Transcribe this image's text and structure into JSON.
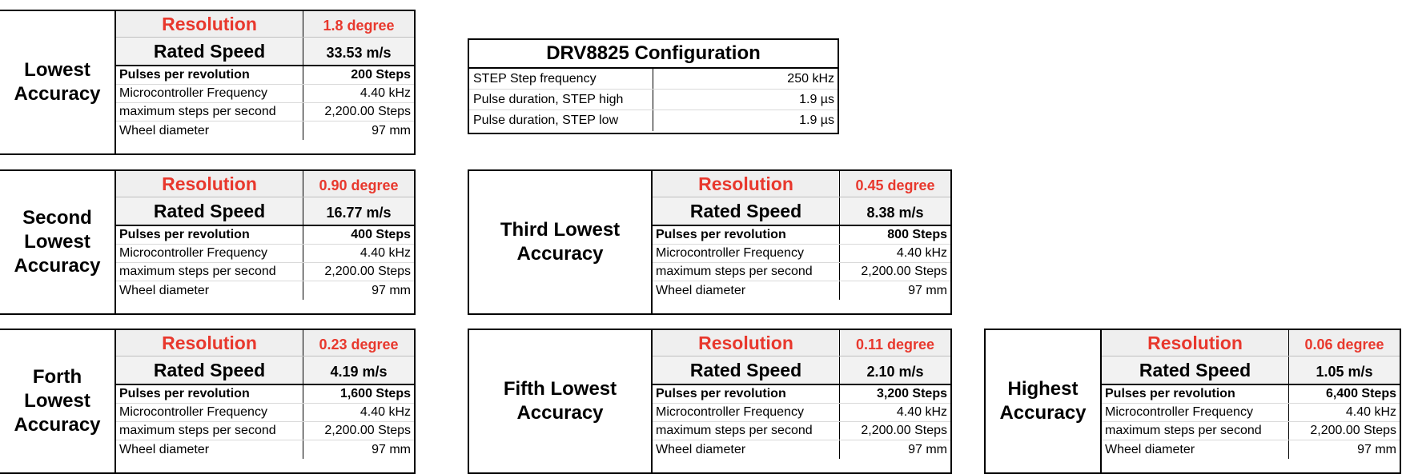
{
  "config": {
    "title": "DRV8825 Configuration",
    "rows": [
      {
        "label": "STEP Step frequency",
        "value": "250 kHz"
      },
      {
        "label": "Pulse duration, STEP high",
        "value": "1.9 µs"
      },
      {
        "label": "Pulse duration, STEP low",
        "value": "1.9 µs"
      }
    ]
  },
  "labels": {
    "resolution": "Resolution",
    "rated_speed": "Rated Speed",
    "pulses": "Pulses per revolution",
    "frequency": "Microcontroller Frequency",
    "steps_per_second": "maximum steps per second",
    "wheel": "Wheel diameter"
  },
  "blocks": [
    {
      "title": "Lowest Accuracy",
      "resolution": "1.8 degree",
      "rated_speed": "33.53 m/s",
      "pulses": "200 Steps",
      "frequency": "4.40 kHz",
      "steps_per_second": "2,200.00 Steps",
      "wheel": "97 mm"
    },
    {
      "title": "Second Lowest Accuracy",
      "resolution": "0.90 degree",
      "rated_speed": "16.77 m/s",
      "pulses": "400 Steps",
      "frequency": "4.40 kHz",
      "steps_per_second": "2,200.00 Steps",
      "wheel": "97 mm"
    },
    {
      "title": "Third Lowest Accuracy",
      "resolution": "0.45 degree",
      "rated_speed": "8.38 m/s",
      "pulses": "800 Steps",
      "frequency": "4.40 kHz",
      "steps_per_second": "2,200.00 Steps",
      "wheel": "97 mm"
    },
    {
      "title": "Forth Lowest Accuracy",
      "resolution": "0.23 degree",
      "rated_speed": "4.19 m/s",
      "pulses": "1,600 Steps",
      "frequency": "4.40 kHz",
      "steps_per_second": "2,200.00 Steps",
      "wheel": "97 mm"
    },
    {
      "title": "Fifth Lowest Accuracy",
      "resolution": "0.11 degree",
      "rated_speed": "2.10 m/s",
      "pulses": "3,200 Steps",
      "frequency": "4.40 kHz",
      "steps_per_second": "2,200.00 Steps",
      "wheel": "97 mm"
    },
    {
      "title": "Highest Accuracy",
      "resolution": "0.06 degree",
      "rated_speed": "1.05 m/s",
      "pulses": "6,400 Steps",
      "frequency": "4.40 kHz",
      "steps_per_second": "2,200.00 Steps",
      "wheel": "97 mm"
    }
  ]
}
